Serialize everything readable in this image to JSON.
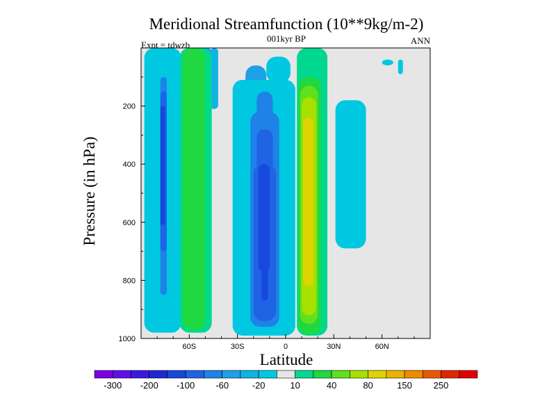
{
  "chart_data": {
    "type": "heatmap",
    "title": "Meridional Streamfunction (10**9kg/m-2)",
    "subtitle": "001kyr BP",
    "left_label": "Expt = tdwzb",
    "right_label": "ANN",
    "xlabel": "Latitude",
    "ylabel": "Pressure (in hPa)",
    "xlim": [
      -90,
      90
    ],
    "ylim": [
      1000,
      0
    ],
    "x_ticks": [
      {
        "value": -60,
        "label": "60S"
      },
      {
        "value": -30,
        "label": "30S"
      },
      {
        "value": 0,
        "label": "0"
      },
      {
        "value": 30,
        "label": "30N"
      },
      {
        "value": 60,
        "label": "60N"
      }
    ],
    "y_ticks": [
      {
        "value": 200,
        "label": "200"
      },
      {
        "value": 400,
        "label": "400"
      },
      {
        "value": 600,
        "label": "600"
      },
      {
        "value": 800,
        "label": "800"
      },
      {
        "value": 1000,
        "label": "1000"
      }
    ],
    "background_color": "#e6e6e6",
    "levels": [
      -300,
      -250,
      -200,
      -150,
      -100,
      -80,
      -60,
      -40,
      -20,
      -10,
      10,
      20,
      40,
      60,
      80,
      100,
      150,
      200,
      250,
      300
    ],
    "colorbar": {
      "colors": [
        "#7a00e0",
        "#5f10e6",
        "#3a18e0",
        "#2028d4",
        "#1848dc",
        "#1e64e4",
        "#1e82e6",
        "#1ea0e6",
        "#10b4e0",
        "#00c8e0",
        "#e6e6e6",
        "#00d890",
        "#20d840",
        "#60e020",
        "#a8e000",
        "#e0d400",
        "#e8b400",
        "#ec8c00",
        "#ec5800",
        "#e02800",
        "#e00000"
      ],
      "labels": [
        "-300",
        "-200",
        "-100",
        "-60",
        "-20",
        "10",
        "40",
        "80",
        "150",
        "250"
      ]
    },
    "contours": [
      {
        "color": "#1ea0e6",
        "cells": [
          [
            -80,
            -70,
            0,
            970
          ],
          [
            -52,
            -46,
            0,
            150
          ],
          [
            -25,
            -12,
            60,
            200
          ],
          [
            -26,
            2,
            120,
            980
          ],
          [
            18,
            22,
            120,
            420
          ]
        ]
      },
      {
        "color": "#10b4e0",
        "cells": [
          [
            -75,
            -72,
            0,
            950
          ],
          [
            -47,
            -42,
            0,
            210
          ],
          [
            -30,
            -2,
            140,
            985
          ]
        ]
      },
      {
        "color": "#00c8e0",
        "cells": [
          [
            -88,
            -65,
            0,
            980
          ],
          [
            -58,
            -48,
            0,
            220
          ],
          [
            -12,
            3,
            30,
            120
          ],
          [
            -33,
            6,
            110,
            990
          ],
          [
            31,
            50,
            180,
            690
          ],
          [
            60,
            67,
            40,
            60
          ],
          [
            70,
            73,
            40,
            90
          ]
        ]
      },
      {
        "color": "#1e82e6",
        "cells": [
          [
            -78,
            -74,
            100,
            850
          ],
          [
            -18,
            -8,
            150,
            920
          ],
          [
            -22,
            -4,
            220,
            960
          ]
        ]
      },
      {
        "color": "#1e64e4",
        "cells": [
          [
            -78,
            -74,
            150,
            700
          ],
          [
            -18,
            -8,
            280,
            860
          ],
          [
            -20,
            -6,
            400,
            940
          ]
        ]
      },
      {
        "color": "#1848dc",
        "cells": [
          [
            -78,
            -75,
            200,
            610
          ],
          [
            -17,
            -10,
            400,
            770
          ],
          [
            -15,
            -11,
            650,
            870
          ]
        ]
      },
      {
        "color": "#00d890",
        "cells": [
          [
            -66,
            -46,
            0,
            980
          ],
          [
            7,
            26,
            0,
            990
          ]
        ]
      },
      {
        "color": "#20d840",
        "cells": [
          [
            -64,
            -50,
            0,
            970
          ],
          [
            8,
            22,
            100,
            985
          ]
        ]
      },
      {
        "color": "#60e020",
        "cells": [
          [
            9,
            20,
            130,
            950
          ]
        ]
      },
      {
        "color": "#a8e000",
        "cells": [
          [
            10,
            19,
            170,
            920
          ]
        ]
      },
      {
        "color": "#e0d400",
        "cells": [
          [
            11,
            17,
            240,
            820
          ]
        ]
      }
    ]
  }
}
